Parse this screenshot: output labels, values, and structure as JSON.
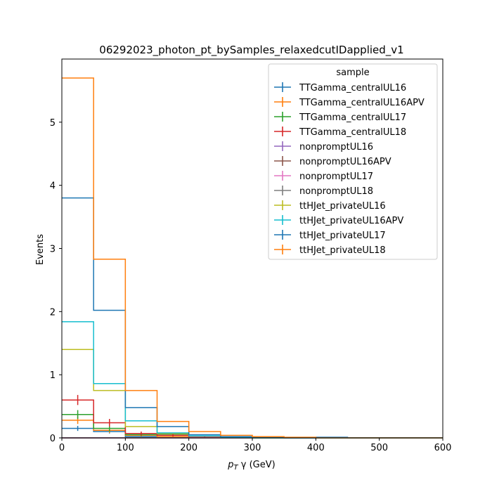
{
  "chart_data": {
    "type": "step-histogram",
    "title": "06292023_photon_pt_bySamples_relaxedcutIDapplied_v1",
    "xlabel_main": "p",
    "xlabel_sub": "T",
    "xlabel_rest": " γ (GeV)",
    "ylabel": "Events",
    "xlim": [
      0,
      600
    ],
    "ylim": [
      0,
      6.0
    ],
    "xticks": [
      0,
      100,
      200,
      300,
      400,
      500,
      600
    ],
    "yticks": [
      0,
      1,
      2,
      3,
      4,
      5
    ],
    "bin_edges": [
      0,
      50,
      100,
      150,
      200,
      250,
      300,
      350,
      400,
      450,
      500,
      550,
      600
    ],
    "legend_title": "sample",
    "legend_position": "upper right",
    "series": [
      {
        "name": "TTGamma_centralUL16",
        "color": "#1f77b4",
        "values": [
          0.15,
          0.1,
          0.02,
          0.01,
          0,
          0,
          0,
          0,
          0,
          0,
          0,
          0
        ],
        "errors": [
          0.04,
          0.03,
          0.01,
          0.01,
          0,
          0,
          0,
          0,
          0,
          0,
          0,
          0
        ]
      },
      {
        "name": "TTGamma_centralUL16APV",
        "color": "#ff7f0e",
        "values": [
          0.28,
          0.12,
          0.04,
          0.02,
          0,
          0,
          0,
          0,
          0,
          0,
          0,
          0
        ],
        "errors": [
          0.06,
          0.04,
          0.02,
          0.01,
          0,
          0,
          0,
          0,
          0,
          0,
          0,
          0
        ]
      },
      {
        "name": "TTGamma_centralUL17",
        "color": "#2ca02c",
        "values": [
          0.37,
          0.15,
          0.05,
          0.06,
          0.01,
          0,
          0,
          0,
          0,
          0,
          0,
          0
        ],
        "errors": [
          0.07,
          0.05,
          0.02,
          0.02,
          0.01,
          0,
          0,
          0,
          0,
          0,
          0,
          0
        ]
      },
      {
        "name": "TTGamma_centralUL18",
        "color": "#d62728",
        "values": [
          0.6,
          0.24,
          0.07,
          0.04,
          0.01,
          0,
          0,
          0,
          0,
          0,
          0,
          0
        ],
        "errors": [
          0.08,
          0.06,
          0.03,
          0.02,
          0.01,
          0,
          0,
          0,
          0,
          0,
          0,
          0
        ]
      },
      {
        "name": "nonpromptUL16",
        "color": "#9467bd",
        "values": [
          0,
          0,
          0,
          0,
          0,
          0,
          0,
          0,
          0,
          0,
          0,
          0
        ],
        "errors": [
          0,
          0,
          0,
          0,
          0,
          0,
          0,
          0,
          0,
          0,
          0,
          0
        ]
      },
      {
        "name": "nonpromptUL16APV",
        "color": "#8c564b",
        "values": [
          0,
          0,
          0,
          0,
          0,
          0,
          0,
          0,
          0,
          0,
          0,
          0
        ],
        "errors": [
          0,
          0,
          0,
          0,
          0,
          0,
          0,
          0,
          0,
          0,
          0,
          0
        ]
      },
      {
        "name": "nonpromptUL17",
        "color": "#e377c2",
        "values": [
          0,
          0,
          0,
          0,
          0,
          0,
          0,
          0,
          0,
          0,
          0,
          0
        ],
        "errors": [
          0,
          0,
          0,
          0,
          0,
          0,
          0,
          0,
          0,
          0,
          0,
          0
        ]
      },
      {
        "name": "nonpromptUL18",
        "color": "#7f7f7f",
        "values": [
          0,
          0,
          0,
          0,
          0,
          0,
          0,
          0,
          0,
          0,
          0,
          0
        ],
        "errors": [
          0,
          0,
          0,
          0,
          0,
          0,
          0,
          0,
          0,
          0,
          0,
          0
        ]
      },
      {
        "name": "ttHJet_privateUL16",
        "color": "#bcbd22",
        "values": [
          1.4,
          0.75,
          0.18,
          0.07,
          0.03,
          0.01,
          0,
          0,
          0,
          0,
          0,
          0
        ],
        "errors": [
          0,
          0,
          0,
          0,
          0,
          0,
          0,
          0,
          0,
          0,
          0,
          0
        ]
      },
      {
        "name": "ttHJet_privateUL16APV",
        "color": "#17becf",
        "values": [
          1.84,
          0.86,
          0.27,
          0.08,
          0.03,
          0.01,
          0,
          0,
          0,
          0,
          0,
          0
        ],
        "errors": [
          0,
          0,
          0,
          0,
          0,
          0,
          0,
          0,
          0,
          0,
          0,
          0
        ]
      },
      {
        "name": "ttHJet_privateUL17",
        "color": "#1f77b4",
        "values": [
          3.8,
          2.02,
          0.48,
          0.18,
          0.05,
          0.02,
          0.01,
          0,
          0.01,
          0,
          0,
          0
        ],
        "errors": [
          0,
          0,
          0,
          0,
          0,
          0,
          0,
          0,
          0,
          0,
          0,
          0
        ]
      },
      {
        "name": "ttHJet_privateUL18",
        "color": "#ff7f0e",
        "values": [
          5.7,
          2.83,
          0.75,
          0.26,
          0.1,
          0.04,
          0.02,
          0.01,
          0,
          0,
          0,
          0
        ],
        "errors": [
          0,
          0,
          0,
          0,
          0,
          0,
          0,
          0,
          0,
          0,
          0,
          0
        ]
      }
    ]
  }
}
